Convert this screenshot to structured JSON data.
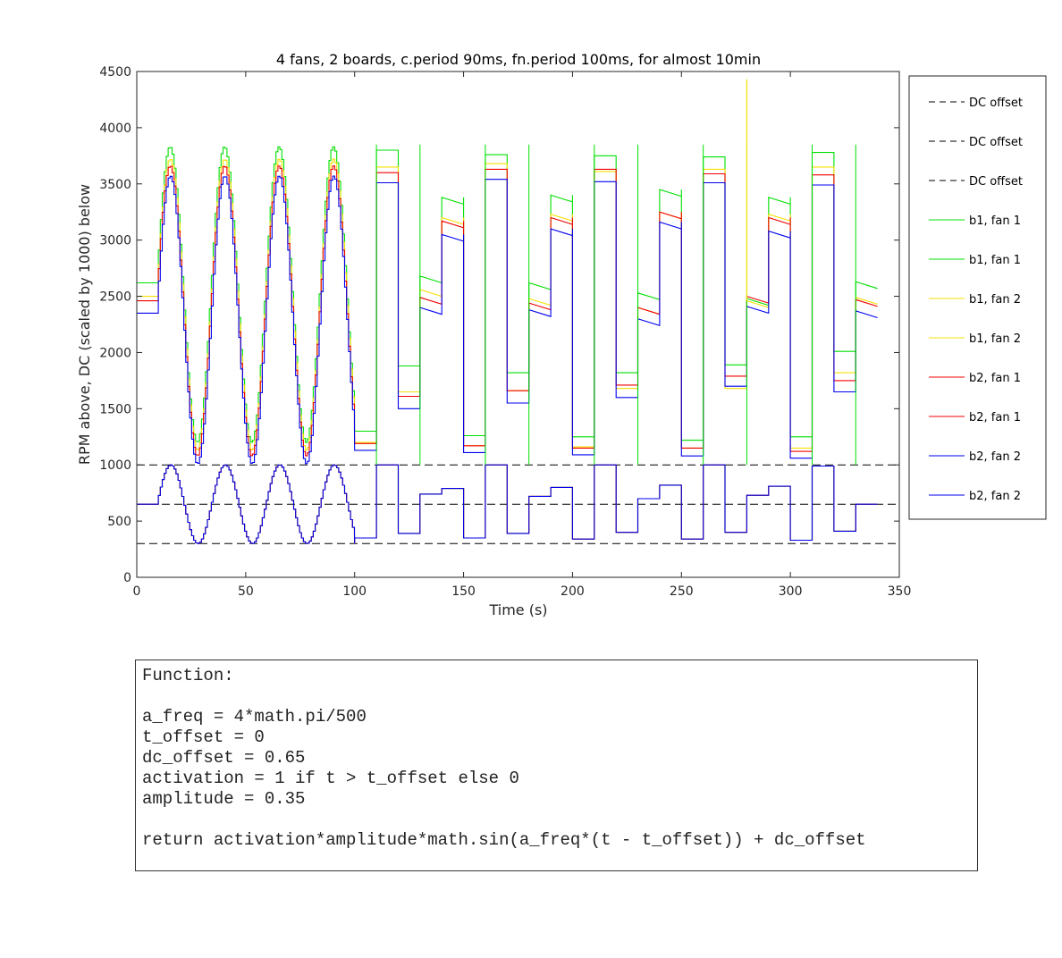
{
  "chart_data": {
    "type": "line",
    "title": "4 fans, 2 boards, c.period 90ms, fn.period 100ms, for almost 10min",
    "xlabel": "Time (s)",
    "ylabel": "RPM above, DC (scaled by 1000) below",
    "xlim": [
      0,
      350
    ],
    "ylim": [
      0,
      4500
    ],
    "xticks": [
      0,
      50,
      100,
      150,
      200,
      250,
      300,
      350
    ],
    "yticks": [
      0,
      500,
      1000,
      1500,
      2000,
      2500,
      3000,
      3500,
      4000,
      4500
    ],
    "grid": false,
    "legend_position": "outside-right",
    "dc_lines": [
      1000,
      650,
      300
    ],
    "colors": {
      "green": "#00e000",
      "yellow": "#f5e000",
      "red": "#f00000",
      "blue": "#0000ee",
      "dc": "#000000"
    },
    "legend": [
      {
        "label": "DC offset",
        "color": "#000000",
        "dashed": true
      },
      {
        "label": "DC offset",
        "color": "#000000",
        "dashed": true
      },
      {
        "label": "DC offset",
        "color": "#000000",
        "dashed": true
      },
      {
        "label": "b1, fan 1",
        "color": "#00e000",
        "dashed": false
      },
      {
        "label": "b1, fan 1",
        "color": "#00e000",
        "dashed": false
      },
      {
        "label": "b1, fan 2",
        "color": "#f5e000",
        "dashed": false
      },
      {
        "label": "b1, fan 2",
        "color": "#f5e000",
        "dashed": false
      },
      {
        "label": "b2, fan 1",
        "color": "#f00000",
        "dashed": false
      },
      {
        "label": "b2, fan 1",
        "color": "#f00000",
        "dashed": false
      },
      {
        "label": "b2, fan 2",
        "color": "#0000ee",
        "dashed": false
      },
      {
        "label": "b2, fan 2",
        "color": "#0000ee",
        "dashed": false
      }
    ],
    "rpm_step_segments": [
      {
        "x": [
          100,
          110
        ],
        "green": 1300,
        "yellow": 1200,
        "red": 1190,
        "blue": 1130
      },
      {
        "x": [
          110,
          120
        ],
        "green": 3800,
        "yellow": 3650,
        "red": 3600,
        "blue": 3510
      },
      {
        "x": [
          120,
          130
        ],
        "green": 1880,
        "yellow": 1650,
        "red": 1610,
        "blue": 1500
      },
      {
        "x": [
          130,
          140
        ],
        "green": 2680,
        "yellow": 2560,
        "red": 2490,
        "blue": 2400
      },
      {
        "x": [
          140,
          150
        ],
        "green": 3380,
        "yellow": 3200,
        "red": 3170,
        "blue": 3050
      },
      {
        "x": [
          150,
          160
        ],
        "green": 1260,
        "yellow": 1170,
        "red": 1170,
        "blue": 1110
      },
      {
        "x": [
          160,
          170
        ],
        "green": 3760,
        "yellow": 3680,
        "red": 3630,
        "blue": 3540
      },
      {
        "x": [
          170,
          180
        ],
        "green": 1820,
        "yellow": 1660,
        "red": 1660,
        "blue": 1550
      },
      {
        "x": [
          180,
          190
        ],
        "green": 2620,
        "yellow": 2480,
        "red": 2440,
        "blue": 2380
      },
      {
        "x": [
          190,
          200
        ],
        "green": 3400,
        "yellow": 3230,
        "red": 3200,
        "blue": 3100
      },
      {
        "x": [
          200,
          210
        ],
        "green": 1250,
        "yellow": 1160,
        "red": 1150,
        "blue": 1090
      },
      {
        "x": [
          210,
          220
        ],
        "green": 3750,
        "yellow": 3610,
        "red": 3630,
        "blue": 3520
      },
      {
        "x": [
          220,
          230
        ],
        "green": 1820,
        "yellow": 1680,
        "red": 1710,
        "blue": 1600
      },
      {
        "x": [
          230,
          240
        ],
        "green": 2530,
        "yellow": 2400,
        "red": 2400,
        "blue": 2300
      },
      {
        "x": [
          240,
          250
        ],
        "green": 3450,
        "yellow": 3250,
        "red": 3250,
        "blue": 3160
      },
      {
        "x": [
          250,
          260
        ],
        "green": 1220,
        "yellow": 1150,
        "red": 1150,
        "blue": 1080
      },
      {
        "x": [
          260,
          270
        ],
        "green": 3740,
        "yellow": 3630,
        "red": 3590,
        "blue": 3510
      },
      {
        "x": [
          270,
          280
        ],
        "green": 1890,
        "yellow": 1680,
        "red": 1790,
        "blue": 1700
      },
      {
        "x": [
          280,
          290
        ],
        "green": 2480,
        "yellow": 2460,
        "red": 2500,
        "blue": 2410
      },
      {
        "x": [
          290,
          300
        ],
        "green": 3380,
        "yellow": 3230,
        "red": 3200,
        "blue": 3080
      },
      {
        "x": [
          300,
          310
        ],
        "green": 1250,
        "yellow": 1150,
        "red": 1120,
        "blue": 1060
      },
      {
        "x": [
          310,
          320
        ],
        "green": 3780,
        "yellow": 3650,
        "red": 3580,
        "blue": 3490
      },
      {
        "x": [
          320,
          330
        ],
        "green": 2010,
        "yellow": 1820,
        "red": 1750,
        "blue": 1650
      },
      {
        "x": [
          330,
          340
        ],
        "green": 2630,
        "yellow": 2490,
        "red": 2470,
        "blue": 2370
      }
    ],
    "dc_step_segments": [
      {
        "x": [
          100,
          110
        ],
        "value": 350
      },
      {
        "x": [
          110,
          120
        ],
        "value": 1000
      },
      {
        "x": [
          120,
          130
        ],
        "value": 390
      },
      {
        "x": [
          130,
          140
        ],
        "value": 740
      },
      {
        "x": [
          140,
          150
        ],
        "value": 790
      },
      {
        "x": [
          150,
          160
        ],
        "value": 350
      },
      {
        "x": [
          160,
          170
        ],
        "value": 1000
      },
      {
        "x": [
          170,
          180
        ],
        "value": 390
      },
      {
        "x": [
          180,
          190
        ],
        "value": 720
      },
      {
        "x": [
          190,
          200
        ],
        "value": 800
      },
      {
        "x": [
          200,
          210
        ],
        "value": 340
      },
      {
        "x": [
          210,
          220
        ],
        "value": 1000
      },
      {
        "x": [
          220,
          230
        ],
        "value": 400
      },
      {
        "x": [
          230,
          240
        ],
        "value": 700
      },
      {
        "x": [
          240,
          250
        ],
        "value": 820
      },
      {
        "x": [
          250,
          260
        ],
        "value": 340
      },
      {
        "x": [
          260,
          270
        ],
        "value": 1000
      },
      {
        "x": [
          270,
          280
        ],
        "value": 400
      },
      {
        "x": [
          280,
          290
        ],
        "value": 730
      },
      {
        "x": [
          290,
          300
        ],
        "value": 810
      },
      {
        "x": [
          300,
          310
        ],
        "value": 330
      },
      {
        "x": [
          310,
          320
        ],
        "value": 990
      },
      {
        "x": [
          320,
          330
        ],
        "value": 410
      },
      {
        "x": [
          330,
          340
        ],
        "value": 650
      }
    ],
    "sine_phase": {
      "x_range": [
        0,
        100
      ],
      "dc_baseline": 650,
      "dc_amplitude": 350,
      "period_s": 25,
      "start_s": 9,
      "rpm_peaks": {
        "green": 3830,
        "yellow": 3720,
        "red": 3660,
        "blue": 3570
      },
      "rpm_troughs": {
        "green": 1200,
        "yellow": 1130,
        "red": 1080,
        "blue": 1010
      },
      "rpm_initial": {
        "green": 2620,
        "yellow": 2500,
        "red": 2460,
        "blue": 2350
      }
    },
    "annotations": [
      {
        "x": 280,
        "value": 4430,
        "series": "yellow",
        "note": "spike"
      }
    ]
  },
  "code_box": {
    "lines": [
      "Function:",
      "",
      "a_freq = 4*math.pi/500",
      "t_offset = 0",
      "dc_offset = 0.65",
      "activation = 1 if t > t_offset else 0",
      "amplitude = 0.35",
      "",
      "return activation*amplitude*math.sin(a_freq*(t - t_offset)) + dc_offset"
    ]
  }
}
